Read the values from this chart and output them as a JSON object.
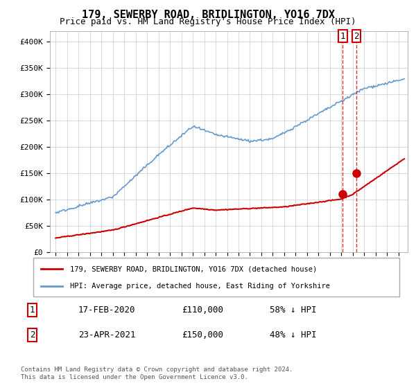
{
  "title": "179, SEWERBY ROAD, BRIDLINGTON, YO16 7DX",
  "subtitle": "Price paid vs. HM Land Registry's House Price Index (HPI)",
  "legend_label_red": "179, SEWERBY ROAD, BRIDLINGTON, YO16 7DX (detached house)",
  "legend_label_blue": "HPI: Average price, detached house, East Riding of Yorkshire",
  "transaction1_label": "1",
  "transaction1_date": "17-FEB-2020",
  "transaction1_price": "£110,000",
  "transaction1_hpi": "58% ↓ HPI",
  "transaction2_label": "2",
  "transaction2_date": "23-APR-2021",
  "transaction2_price": "£150,000",
  "transaction2_hpi": "48% ↓ HPI",
  "footer": "Contains HM Land Registry data © Crown copyright and database right 2024.\nThis data is licensed under the Open Government Licence v3.0.",
  "red_color": "#cc0000",
  "blue_color": "#6699cc",
  "dashed_line_color": "#cc0000",
  "marker1_color": "#cc0000",
  "marker2_color": "#cc0000",
  "background_color": "#ffffff",
  "grid_color": "#cccccc",
  "box_color": "#cc0000",
  "ylim": [
    0,
    420000
  ],
  "yticks": [
    0,
    50000,
    100000,
    150000,
    200000,
    250000,
    300000,
    350000,
    400000
  ],
  "start_year": 1995,
  "end_year": 2025,
  "transaction1_year": 2020.12,
  "transaction2_year": 2021.32,
  "marker1_value": 110000,
  "marker2_value": 150000
}
